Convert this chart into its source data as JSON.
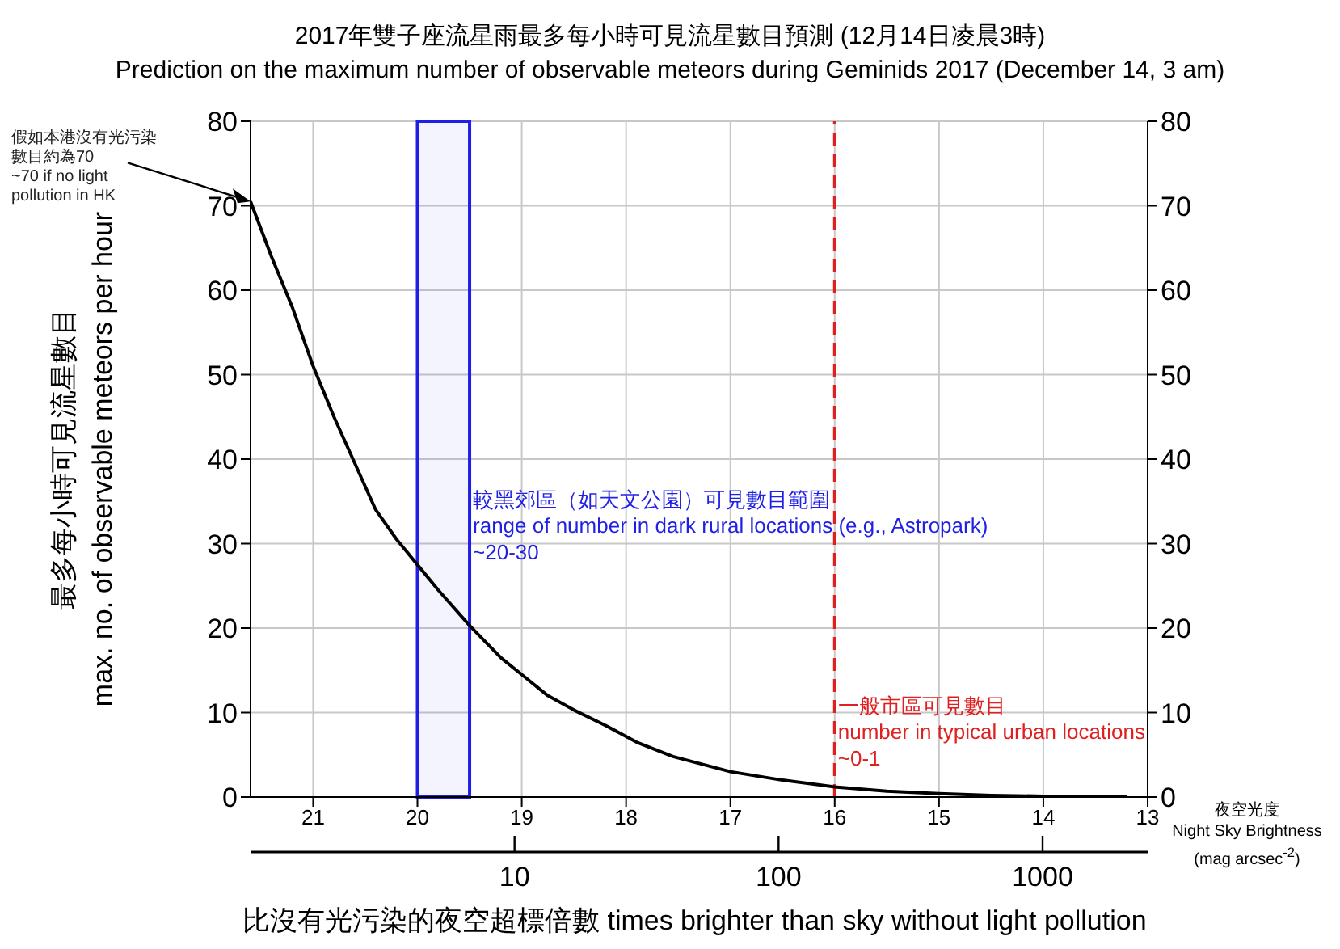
{
  "chart_data": {
    "type": "line",
    "title": "2017年雙子座流星雨最多每小時可見流星數目預測 (12月14日凌晨3時)",
    "subtitle": "Prediction on the maximum number of observable meteors during Geminids 2017 (December 14, 3 am)",
    "xlabel": "夜空光度\nNight Sky Brightness\n(mag arcsec$^{-2}$)",
    "x2label": "比沒有光污染的夜空超標倍數 times brighter than sky without light pollution",
    "ylabel": "最多每小時可見流星數目\nmax. no. of observable meteors per hour",
    "x": [
      21.6,
      21.4,
      21.2,
      21.0,
      20.8,
      20.6,
      20.4,
      20.2,
      20.0,
      19.8,
      19.5,
      19.2,
      19.0,
      18.75,
      18.5,
      18.2,
      17.9,
      17.55,
      17.0,
      16.5,
      16.0,
      15.5,
      15.0,
      14.5,
      14.0,
      13.5,
      13.2
    ],
    "series": [
      {
        "color": "#000000",
        "values": [
          70.5,
          64,
          58,
          51,
          45,
          39.5,
          34,
          30.5,
          27.5,
          24.5,
          20.3,
          16.5,
          14.5,
          12,
          10.3,
          8.5,
          6.5,
          4.8,
          3,
          2,
          1.2,
          0.7,
          0.4,
          0.2,
          0.1,
          0,
          0
        ]
      }
    ],
    "xlim": [
      21.6,
      13
    ],
    "xticks": [
      21,
      20,
      19,
      18,
      17,
      16,
      15,
      14,
      13
    ],
    "x2lim": [
      1,
      2500
    ],
    "x2ticks": [
      10,
      100,
      1000
    ],
    "log": "x2",
    "ylim": [
      0,
      80
    ],
    "yticks": [
      0,
      10,
      20,
      30,
      40,
      50,
      60,
      70,
      80
    ],
    "y2lim": [
      0,
      80
    ],
    "y2ticks": [
      0,
      10,
      20,
      30,
      40,
      50,
      60,
      70,
      80
    ],
    "grid": true,
    "marker": "none",
    "line_style": "solid",
    "bands": [
      {
        "axis": "x",
        "from": 20,
        "to": 19.5,
        "label": "較黑郊區（如天文公園）可見數目範圍\nrange of number in dark rural locations (e.g., Astropark)\n~20-30",
        "color": "#1f1fe6"
      }
    ],
    "ref_lines": [
      {
        "axis": "x",
        "value": 16,
        "label": "一般市區可見數目\nnumber in typical urban locations\n~0-1",
        "color": "#e02020",
        "line_style": "dashed"
      }
    ],
    "annotations": [
      {
        "text": "假如本港沒有光污染數目約為70\n~70 if no light pollution in HK",
        "x": 21.6,
        "y": 70.5
      }
    ]
  }
}
